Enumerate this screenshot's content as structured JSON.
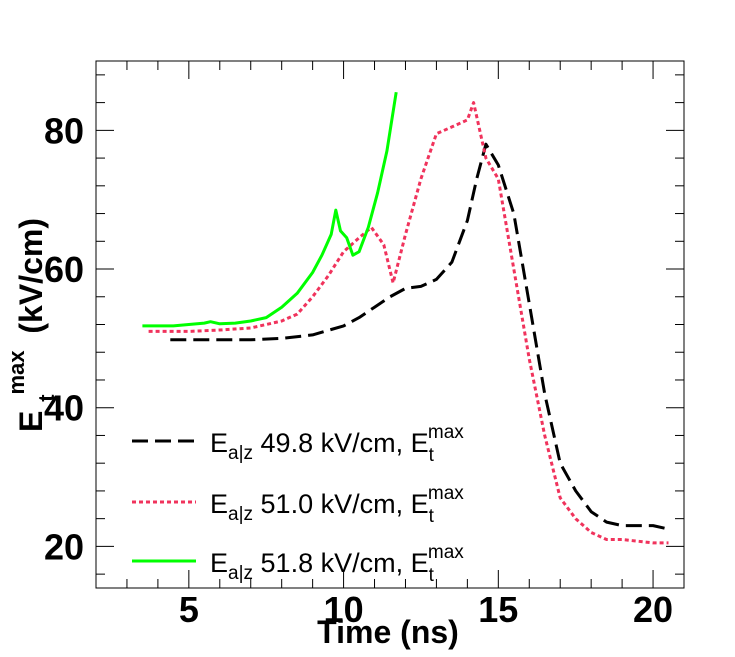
{
  "chart_data": {
    "type": "line",
    "title": "",
    "xlabel": "Time (ns)",
    "ylabel_main": "E",
    "ylabel_sub": "t",
    "ylabel_sup": "max",
    "ylabel_units": "(kV/cm)",
    "xlim": [
      2,
      21
    ],
    "ylim": [
      14,
      90
    ],
    "xticks": [
      5,
      10,
      15,
      20
    ],
    "xtick_labels": [
      "5",
      "10",
      "15",
      "20"
    ],
    "yticks": [
      20,
      40,
      60,
      80
    ],
    "ytick_labels": [
      "20",
      "40",
      "60",
      "80"
    ],
    "legend_position": "bottom-left",
    "series": [
      {
        "name": "E_a|z 49.8 kV/cm, E_t^max",
        "legend_main": "E",
        "legend_sub": "a|z",
        "legend_value": " 49.8 kV/cm, E",
        "legend_tsub": "t",
        "legend_sup": "max",
        "color": "#000000",
        "style": "dashed",
        "x": [
          4.4,
          5.0,
          6.0,
          7.0,
          8.0,
          9.0,
          10.0,
          10.5,
          11.0,
          11.5,
          12.0,
          12.5,
          13.0,
          13.5,
          14.0,
          14.3,
          14.6,
          15.0,
          15.5,
          16.0,
          16.5,
          17.0,
          17.5,
          18.0,
          18.5,
          19.0,
          20.0,
          20.5
        ],
        "y": [
          49.8,
          49.8,
          49.8,
          49.8,
          50.0,
          50.5,
          51.8,
          53.0,
          54.5,
          56.0,
          57.2,
          57.5,
          58.5,
          61.0,
          67.0,
          73.0,
          78.0,
          75.0,
          68.0,
          55.0,
          42.0,
          32.0,
          28.0,
          25.0,
          23.5,
          23.0,
          23.0,
          22.5
        ]
      },
      {
        "name": "E_a|z 51.0 kV/cm, E_t^max",
        "legend_main": "E",
        "legend_sub": "a|z",
        "legend_value": " 51.0 kV/cm, E",
        "legend_tsub": "t",
        "legend_sup": "max",
        "color": "#f0335c",
        "style": "dotted",
        "x": [
          3.7,
          5.0,
          6.0,
          7.0,
          8.0,
          8.5,
          9.0,
          9.5,
          10.0,
          10.5,
          10.9,
          11.3,
          11.6,
          12.0,
          12.5,
          13.0,
          13.5,
          14.0,
          14.2,
          14.6,
          15.0,
          15.5,
          16.0,
          16.5,
          17.0,
          17.5,
          18.0,
          18.5,
          19.0,
          20.0,
          20.5
        ],
        "y": [
          51.0,
          51.0,
          51.2,
          51.5,
          52.5,
          53.5,
          56.0,
          59.0,
          62.5,
          64.5,
          66.0,
          63.5,
          58.0,
          65.0,
          73.0,
          79.5,
          80.5,
          81.5,
          84.0,
          76.0,
          73.0,
          60.0,
          47.0,
          36.0,
          27.0,
          24.0,
          22.0,
          21.0,
          21.0,
          20.5,
          20.5
        ]
      },
      {
        "name": "E_a|z 51.8 kV/cm, E_t^max",
        "legend_main": "E",
        "legend_sub": "a|z",
        "legend_value": " 51.8 kV/cm, E",
        "legend_tsub": "t",
        "legend_sup": "max",
        "color": "#00ff00",
        "style": "solid",
        "x": [
          3.5,
          4.5,
          5.0,
          5.5,
          5.7,
          6.0,
          6.5,
          7.0,
          7.5,
          8.0,
          8.5,
          9.0,
          9.3,
          9.6,
          9.75,
          9.9,
          10.1,
          10.3,
          10.5,
          10.8,
          11.1,
          11.4,
          11.7
        ],
        "y": [
          51.8,
          51.8,
          52.0,
          52.2,
          52.4,
          52.1,
          52.2,
          52.5,
          53.0,
          54.5,
          56.5,
          59.5,
          62.0,
          65.0,
          68.5,
          65.5,
          64.5,
          62.0,
          62.5,
          66.0,
          71.0,
          77.0,
          85.5
        ]
      }
    ]
  }
}
